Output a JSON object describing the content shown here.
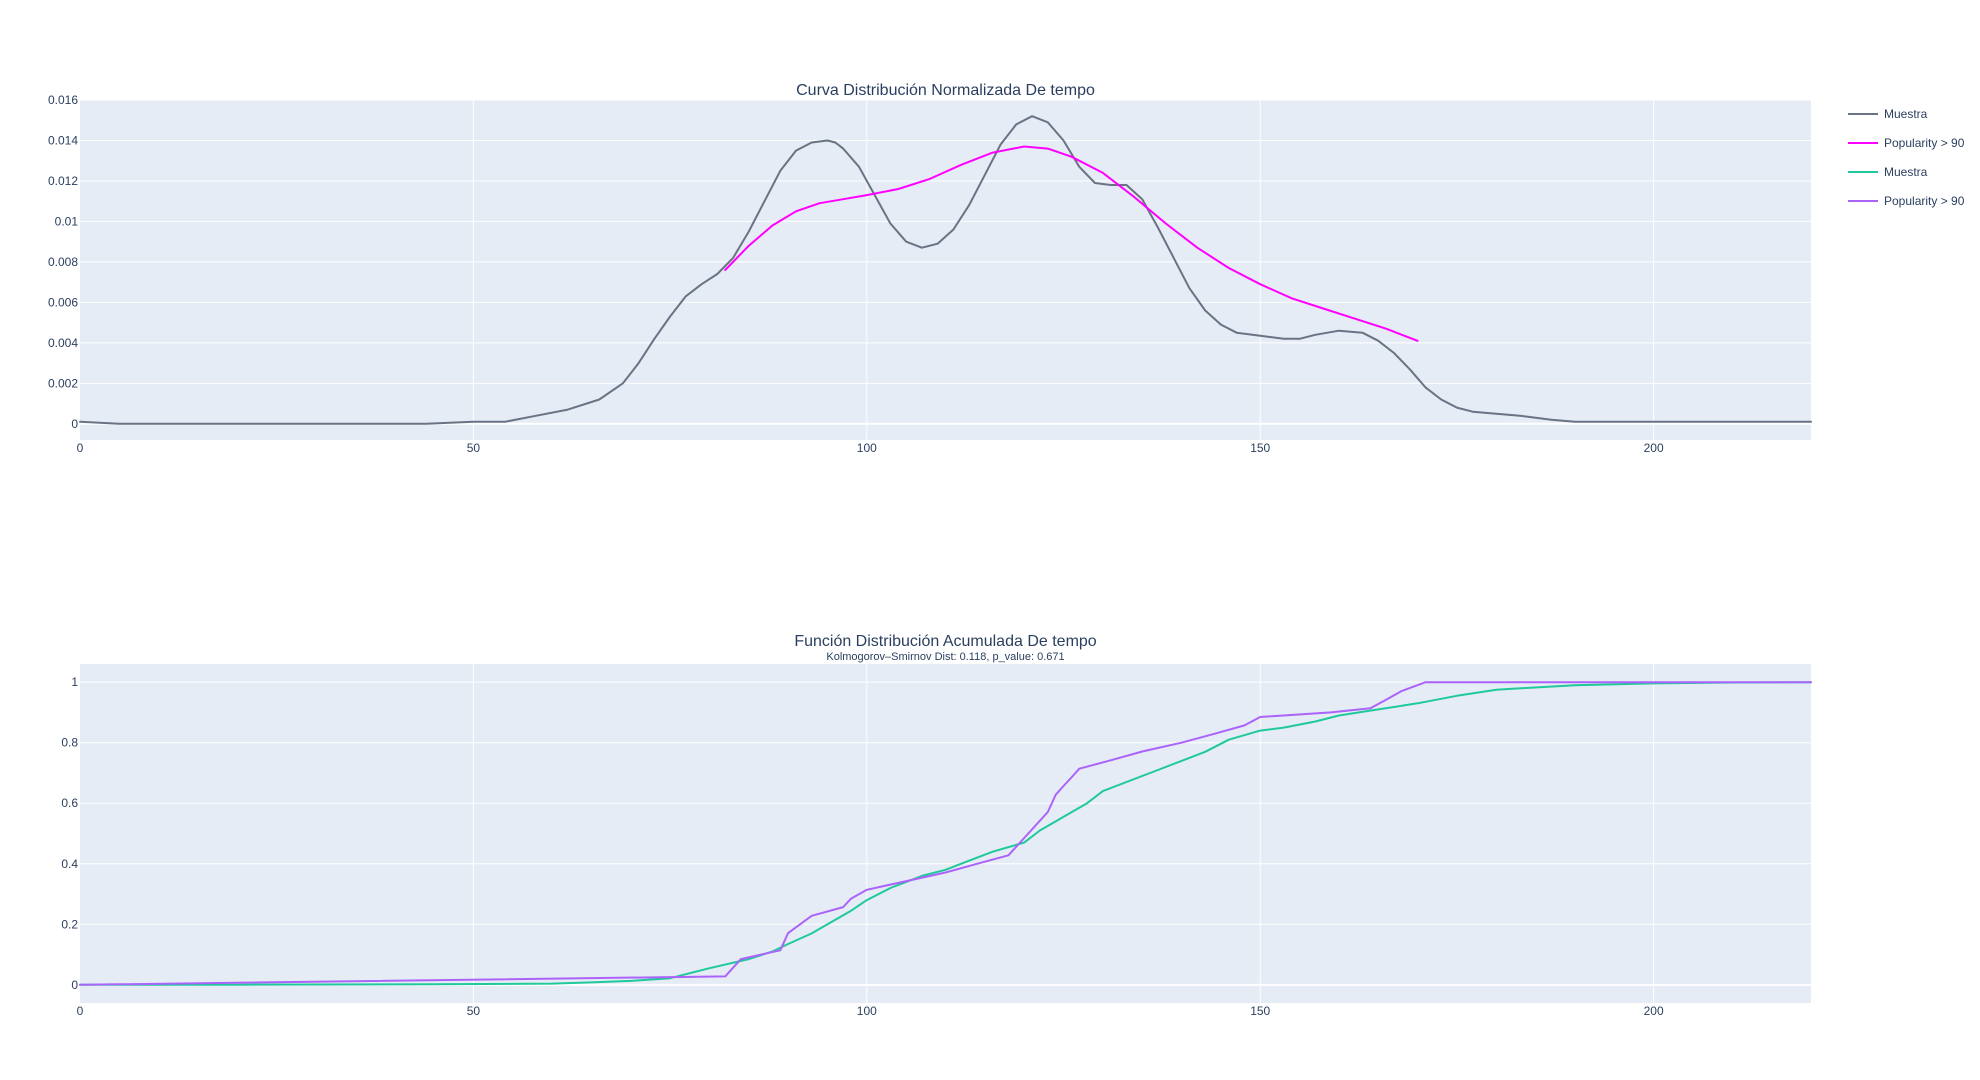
{
  "chart_data": [
    {
      "type": "line",
      "title": "Curva Distribución Normalizada De tempo",
      "xlim": [
        0,
        220
      ],
      "ylim": [
        -0.0008,
        0.016
      ],
      "xticks": [
        0,
        50,
        100,
        150,
        200
      ],
      "yticks": [
        0,
        0.002,
        0.004,
        0.006,
        0.008,
        0.01,
        0.012,
        0.014,
        0.016
      ],
      "ytick_labels": [
        "0",
        "0.002",
        "0.004",
        "0.006",
        "0.008",
        "0.01",
        "0.012",
        "0.014",
        "0.016"
      ],
      "grid": true,
      "series": [
        {
          "name": "Muestra",
          "color": "#6a7384",
          "x": [
            0,
            5,
            10,
            20,
            30,
            40,
            44,
            50,
            54,
            58,
            62,
            66,
            69,
            71,
            73,
            75,
            77,
            79,
            81,
            83,
            85,
            87,
            89,
            91,
            93,
            95,
            96,
            97,
            99,
            101,
            103,
            105,
            107,
            109,
            111,
            113,
            115,
            117,
            119,
            121,
            123,
            125,
            127,
            129,
            131,
            133,
            135,
            137,
            139,
            141,
            143,
            145,
            147,
            149,
            151,
            153,
            155,
            157,
            160,
            163,
            165,
            167,
            169,
            171,
            173,
            175,
            177,
            180,
            183,
            185,
            187,
            190,
            195,
            200,
            205,
            210,
            215,
            220
          ],
          "y": [
            0.0001,
            0,
            0,
            0,
            0,
            0,
            0,
            0.0001,
            0.0001,
            0.0004,
            0.0007,
            0.0012,
            0.002,
            0.003,
            0.0042,
            0.0053,
            0.0063,
            0.0069,
            0.0074,
            0.0082,
            0.0095,
            0.011,
            0.0125,
            0.0135,
            0.0139,
            0.014,
            0.0139,
            0.0136,
            0.0127,
            0.0113,
            0.0099,
            0.009,
            0.0087,
            0.0089,
            0.0096,
            0.0108,
            0.0123,
            0.0138,
            0.0148,
            0.0152,
            0.0149,
            0.014,
            0.0127,
            0.0119,
            0.0118,
            0.0118,
            0.0111,
            0.0097,
            0.0082,
            0.0067,
            0.0056,
            0.0049,
            0.0045,
            0.0044,
            0.0043,
            0.0042,
            0.0042,
            0.0044,
            0.0046,
            0.0045,
            0.0041,
            0.0035,
            0.0027,
            0.0018,
            0.0012,
            0.0008,
            0.0006,
            0.0005,
            0.0004,
            0.0003,
            0.0002,
            0.0001,
            0.0001,
            0.0001,
            0.0001,
            0.0001,
            0.0001,
            0.0001
          ]
        },
        {
          "name": "Popularity > 90",
          "color": "#ff00ff",
          "x": [
            82,
            85,
            88,
            91,
            94,
            97,
            100,
            104,
            108,
            112,
            116,
            120,
            123,
            126,
            130,
            134,
            138,
            142,
            146,
            150,
            154,
            158,
            162,
            166,
            170
          ],
          "y": [
            0.0076,
            0.0088,
            0.0098,
            0.0105,
            0.0109,
            0.0111,
            0.0113,
            0.0116,
            0.0121,
            0.0128,
            0.0134,
            0.0137,
            0.0136,
            0.0132,
            0.0124,
            0.0112,
            0.0099,
            0.0087,
            0.0077,
            0.0069,
            0.0062,
            0.0057,
            0.0052,
            0.0047,
            0.0041
          ]
        }
      ]
    },
    {
      "type": "line",
      "title": "Función Distribución Acumulada De tempo",
      "subtitle": "Kolmogorov–Smirnov Dist: 0.118, p_value:  0.671",
      "xlim": [
        0,
        220
      ],
      "ylim": [
        -0.06,
        1.06
      ],
      "xticks": [
        0,
        50,
        100,
        150,
        200
      ],
      "yticks": [
        0,
        0.2,
        0.4,
        0.6,
        0.8,
        1
      ],
      "ytick_labels": [
        "0",
        "0.2",
        "0.4",
        "0.6",
        "0.8",
        "1"
      ],
      "grid": true,
      "series": [
        {
          "name": "Muestra",
          "color": "#1fc99b",
          "x": [
            0,
            20,
            45,
            60,
            65,
            70,
            75,
            80,
            85,
            88,
            90,
            93,
            95,
            98,
            100,
            103,
            107,
            110,
            113,
            116,
            120,
            122,
            124,
            126,
            128,
            130,
            133,
            136,
            140,
            143,
            146,
            150,
            153,
            157,
            160,
            165,
            170,
            175,
            180,
            190,
            200,
            210,
            220
          ],
          "y": [
            0,
            0.0005,
            0.002,
            0.004,
            0.008,
            0.013,
            0.022,
            0.055,
            0.085,
            0.11,
            0.135,
            0.17,
            0.2,
            0.245,
            0.28,
            0.32,
            0.36,
            0.38,
            0.41,
            0.44,
            0.47,
            0.51,
            0.54,
            0.57,
            0.6,
            0.64,
            0.67,
            0.7,
            0.74,
            0.77,
            0.81,
            0.84,
            0.85,
            0.87,
            0.89,
            0.91,
            0.93,
            0.955,
            0.975,
            0.99,
            0.996,
            0.999,
            1
          ]
        },
        {
          "name": "Popularity > 90",
          "color": "#ab63fa",
          "x": [
            0,
            82,
            84,
            89,
            90,
            93,
            97,
            98,
            100,
            110,
            114,
            118,
            120,
            121,
            123,
            124,
            125,
            126,
            127,
            131,
            135,
            140,
            144,
            148,
            150,
            159,
            164,
            166,
            168,
            171,
            220
          ],
          "y": [
            0,
            0.028,
            0.085,
            0.114,
            0.171,
            0.228,
            0.257,
            0.285,
            0.314,
            0.371,
            0.4,
            0.428,
            0.485,
            0.514,
            0.571,
            0.628,
            0.657,
            0.685,
            0.714,
            0.742,
            0.771,
            0.8,
            0.828,
            0.857,
            0.885,
            0.9,
            0.914,
            0.942,
            0.971,
            1,
            1
          ]
        }
      ]
    }
  ],
  "legend": [
    {
      "label": "Muestra",
      "color": "#6a7384"
    },
    {
      "label": "Popularity > 90",
      "color": "#ff00ff"
    },
    {
      "label": "Muestra",
      "color": "#1fc99b"
    },
    {
      "label": "Popularity > 90",
      "color": "#ab63fa"
    }
  ]
}
